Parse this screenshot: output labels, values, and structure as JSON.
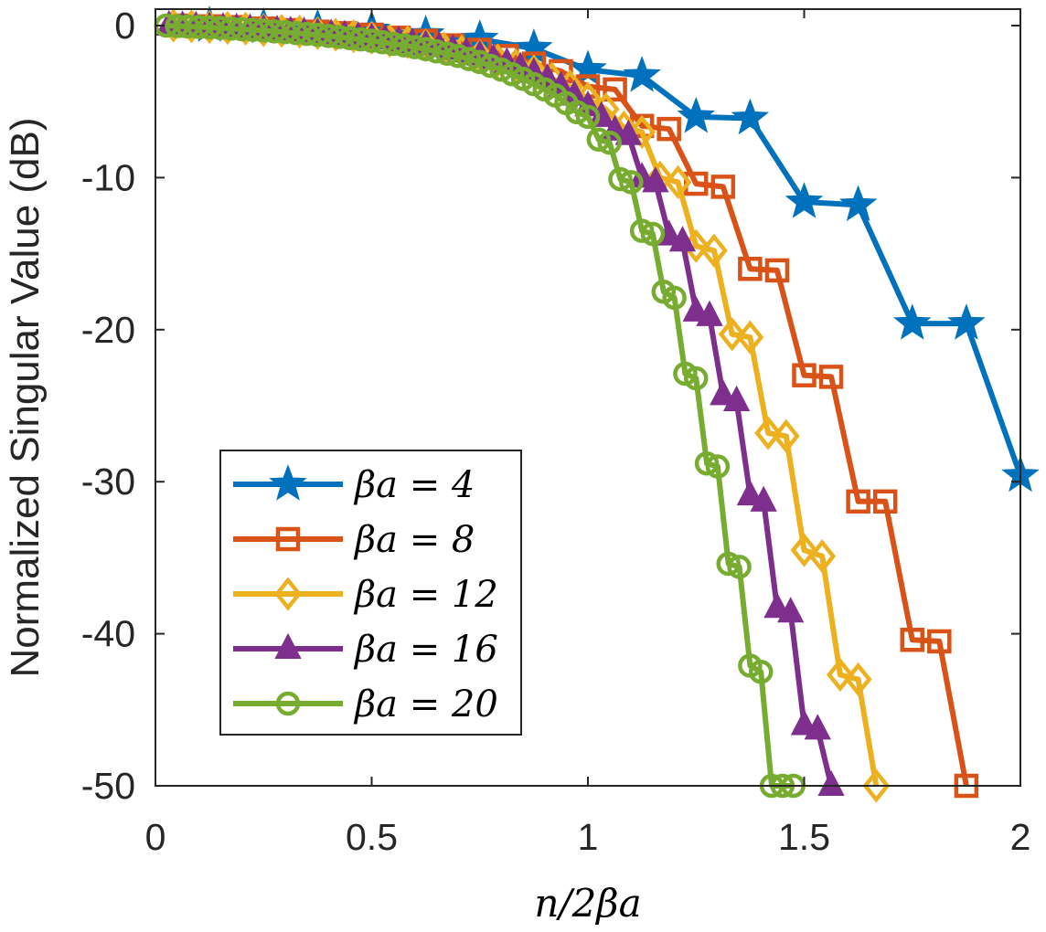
{
  "chart_data": {
    "type": "line",
    "xlabel": "n/2βa",
    "ylabel": "Normalized Singular Value (dB)",
    "xlim": [
      0,
      2
    ],
    "ylim": [
      -50,
      1
    ],
    "xticks": [
      0,
      0.5,
      1,
      1.5,
      2
    ],
    "xtick_labels": [
      "0",
      "0.5",
      "1",
      "1.5",
      "2"
    ],
    "yticks": [
      0,
      -10,
      -20,
      -30,
      -40,
      -50
    ],
    "ytick_labels": [
      "0",
      "-10",
      "-20",
      "-30",
      "-40",
      "-50"
    ],
    "legend_position": "bottom-left",
    "series": [
      {
        "name": "βa = 4",
        "color": "#0072BD",
        "marker": "star",
        "x": [
          0.125,
          0.25,
          0.375,
          0.5,
          0.625,
          0.75,
          0.875,
          1.0,
          1.125,
          1.25,
          1.375,
          1.5,
          1.625,
          1.75,
          1.875,
          2.0
        ],
        "y": [
          0,
          -0.1,
          -0.2,
          -0.3,
          -0.6,
          -0.9,
          -1.5,
          -2.9,
          -3.3,
          -6.0,
          -6.1,
          -11.6,
          -11.8,
          -19.6,
          -19.6,
          -29.6
        ]
      },
      {
        "name": "βa = 8",
        "color": "#D95319",
        "marker": "square",
        "x": [
          0.0625,
          0.125,
          0.1875,
          0.25,
          0.3125,
          0.375,
          0.4375,
          0.5,
          0.5625,
          0.625,
          0.6875,
          0.75,
          0.8125,
          0.875,
          0.9375,
          1.0,
          1.0625,
          1.125,
          1.1875,
          1.25,
          1.3125,
          1.375,
          1.4375,
          1.5,
          1.5625,
          1.625,
          1.6875,
          1.75,
          1.8125,
          1.875
        ],
        "y": [
          0,
          -0.05,
          -0.1,
          -0.2,
          -0.3,
          -0.4,
          -0.5,
          -0.6,
          -0.8,
          -1.0,
          -1.3,
          -1.6,
          -2.0,
          -2.5,
          -3.0,
          -4.0,
          -4.2,
          -6.6,
          -6.8,
          -10.4,
          -10.6,
          -16.0,
          -16.1,
          -23.0,
          -23.1,
          -31.3,
          -31.3,
          -40.4,
          -40.5,
          -50.0
        ]
      },
      {
        "name": "βa = 12",
        "color": "#EDB120",
        "marker": "diamond",
        "x": [
          0.0417,
          0.0833,
          0.125,
          0.1667,
          0.2083,
          0.25,
          0.2917,
          0.3333,
          0.375,
          0.4167,
          0.4583,
          0.5,
          0.5417,
          0.5833,
          0.625,
          0.6667,
          0.7083,
          0.75,
          0.7917,
          0.8333,
          0.875,
          0.9167,
          0.9583,
          1.0,
          1.0417,
          1.0833,
          1.125,
          1.1667,
          1.2083,
          1.25,
          1.2917,
          1.3333,
          1.375,
          1.4167,
          1.4583,
          1.5,
          1.5417,
          1.5833,
          1.625,
          1.6667
        ],
        "y": [
          0,
          -0.05,
          -0.1,
          -0.15,
          -0.2,
          -0.3,
          -0.35,
          -0.4,
          -0.5,
          -0.6,
          -0.7,
          -0.8,
          -1.0,
          -1.1,
          -1.3,
          -1.5,
          -1.7,
          -2.0,
          -2.3,
          -2.6,
          -3.0,
          -3.5,
          -4.0,
          -4.8,
          -5.5,
          -6.7,
          -7.0,
          -10.0,
          -10.3,
          -14.5,
          -14.8,
          -20.3,
          -20.5,
          -26.8,
          -27.0,
          -34.5,
          -34.9,
          -42.7,
          -43.0,
          -50.0
        ]
      },
      {
        "name": "βa = 16",
        "color": "#7E2F8E",
        "marker": "triangle",
        "x": [
          0.03125,
          0.0625,
          0.09375,
          0.125,
          0.15625,
          0.1875,
          0.21875,
          0.25,
          0.28125,
          0.3125,
          0.34375,
          0.375,
          0.40625,
          0.4375,
          0.46875,
          0.5,
          0.53125,
          0.5625,
          0.59375,
          0.625,
          0.65625,
          0.6875,
          0.71875,
          0.75,
          0.78125,
          0.8125,
          0.84375,
          0.875,
          0.90625,
          0.9375,
          0.96875,
          1.0,
          1.03125,
          1.0625,
          1.09375,
          1.125,
          1.15625,
          1.1875,
          1.21875,
          1.25,
          1.28125,
          1.3125,
          1.34375,
          1.375,
          1.40625,
          1.4375,
          1.46875,
          1.5,
          1.53125,
          1.5625
        ],
        "y": [
          0,
          -0.03,
          -0.06,
          -0.1,
          -0.14,
          -0.18,
          -0.22,
          -0.27,
          -0.32,
          -0.38,
          -0.44,
          -0.5,
          -0.57,
          -0.65,
          -0.73,
          -0.82,
          -0.92,
          -1.03,
          -1.15,
          -1.28,
          -1.42,
          -1.58,
          -1.76,
          -1.96,
          -2.2,
          -2.45,
          -2.75,
          -3.1,
          -3.5,
          -4.0,
          -4.6,
          -5.3,
          -6.0,
          -6.9,
          -7.2,
          -10.0,
          -10.3,
          -13.8,
          -14.2,
          -18.8,
          -19.1,
          -24.3,
          -24.7,
          -30.9,
          -31.3,
          -38.3,
          -38.6,
          -46.0,
          -46.3,
          -50.0
        ]
      },
      {
        "name": "βa = 20",
        "color": "#77AC30",
        "marker": "circle",
        "x": [
          0.025,
          0.05,
          0.075,
          0.1,
          0.125,
          0.15,
          0.175,
          0.2,
          0.225,
          0.25,
          0.275,
          0.3,
          0.325,
          0.35,
          0.375,
          0.4,
          0.425,
          0.45,
          0.475,
          0.5,
          0.525,
          0.55,
          0.575,
          0.6,
          0.625,
          0.65,
          0.675,
          0.7,
          0.725,
          0.75,
          0.775,
          0.8,
          0.825,
          0.85,
          0.875,
          0.9,
          0.925,
          0.95,
          0.975,
          1.0,
          1.025,
          1.05,
          1.075,
          1.1,
          1.125,
          1.15,
          1.175,
          1.2,
          1.225,
          1.25,
          1.275,
          1.3,
          1.325,
          1.35,
          1.375,
          1.4,
          1.425,
          1.45,
          1.475
        ],
        "y": [
          0,
          -0.03,
          -0.06,
          -0.09,
          -0.12,
          -0.16,
          -0.2,
          -0.24,
          -0.28,
          -0.33,
          -0.38,
          -0.43,
          -0.49,
          -0.55,
          -0.61,
          -0.68,
          -0.75,
          -0.83,
          -0.91,
          -1.0,
          -1.1,
          -1.2,
          -1.3,
          -1.42,
          -1.55,
          -1.7,
          -1.85,
          -2.0,
          -2.2,
          -2.4,
          -2.65,
          -2.9,
          -3.2,
          -3.5,
          -3.85,
          -4.2,
          -4.6,
          -5.1,
          -5.7,
          -6.0,
          -7.5,
          -7.7,
          -10.1,
          -10.3,
          -13.5,
          -13.7,
          -17.5,
          -17.9,
          -22.9,
          -23.2,
          -28.8,
          -29.0,
          -35.4,
          -35.6,
          -42.1,
          -42.5,
          -50.0,
          -50.0,
          -50.0
        ]
      }
    ]
  }
}
